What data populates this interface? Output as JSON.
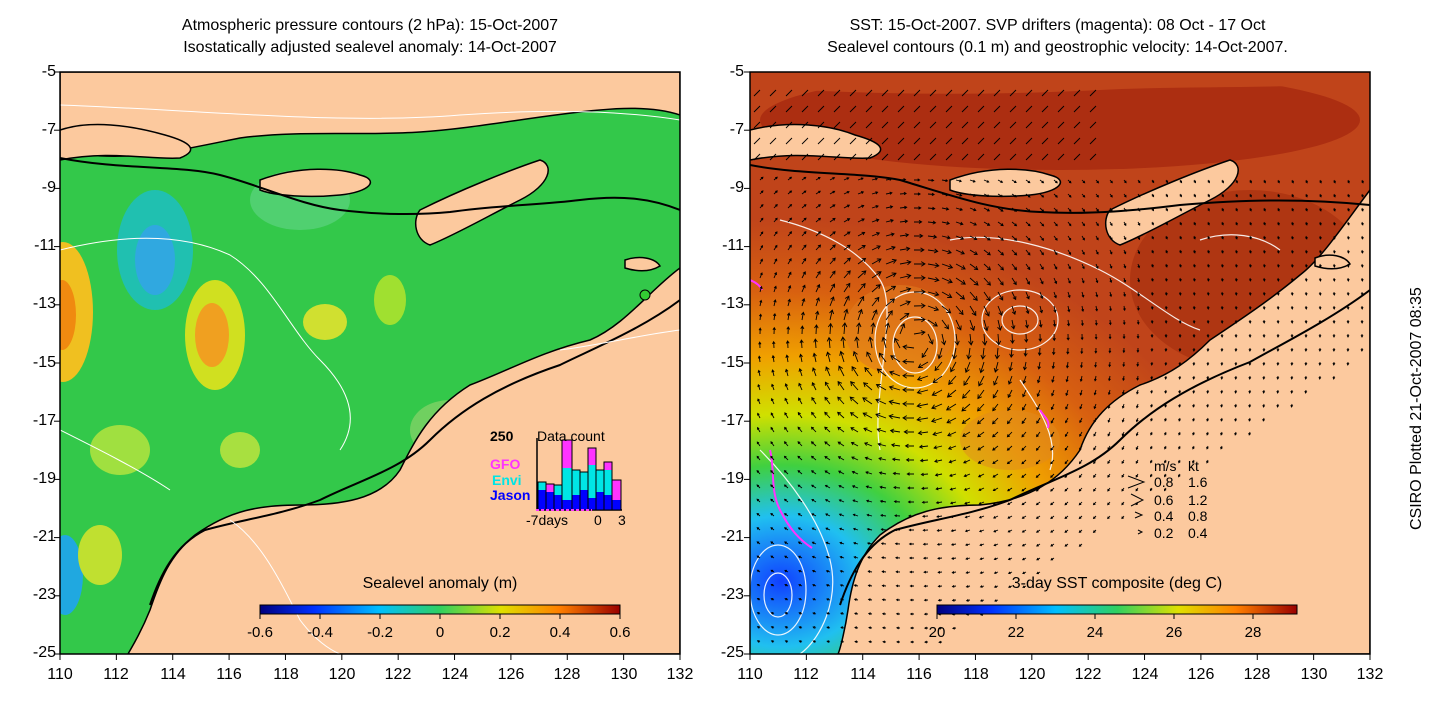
{
  "left_panel": {
    "title_line1": "Atmospheric pressure contours (2 hPa): 15-Oct-2007",
    "title_line2": "Isostatically adjusted sealevel anomaly: 14-Oct-2007",
    "colorbar": {
      "title": "Sealevel anomaly (m)",
      "ticks": [
        "-0.6",
        "-0.4",
        "-0.2",
        "0",
        "0.2",
        "0.4",
        "0.6"
      ]
    },
    "inset": {
      "title": "Data count",
      "y_max_label": "250",
      "x_labels": [
        "-7days",
        "0",
        "3"
      ],
      "legend": [
        {
          "name": "GFO",
          "color": "#ff33ff"
        },
        {
          "name": "Envi",
          "color": "#00e5e5"
        },
        {
          "name": "Jason",
          "color": "#0000ff"
        }
      ]
    }
  },
  "right_panel": {
    "title_line1": "SST: 15-Oct-2007. SVP drifters (magenta): 08 Oct - 17 Oct",
    "title_line2": "Sealevel contours (0.1 m) and geostrophic velocity: 14-Oct-2007.",
    "colorbar": {
      "title": "3-day SST composite (deg C)",
      "ticks": [
        "20",
        "22",
        "24",
        "26",
        "28"
      ]
    },
    "velocity_legend": {
      "header_ms": "m/s",
      "header_kt": "kt",
      "rows": [
        {
          "ms": "0.8",
          "kt": "1.6"
        },
        {
          "ms": "0.6",
          "kt": "1.2"
        },
        {
          "ms": "0.4",
          "kt": "0.8"
        },
        {
          "ms": "0.2",
          "kt": "0.4"
        }
      ]
    }
  },
  "axes": {
    "y_ticks": [
      "-5",
      "-7",
      "-9",
      "-11",
      "-13",
      "-15",
      "-17",
      "-19",
      "-21",
      "-23",
      "-25"
    ],
    "x_ticks": [
      "110",
      "112",
      "114",
      "116",
      "118",
      "120",
      "122",
      "124",
      "126",
      "128",
      "130",
      "132"
    ]
  },
  "side_credit": "CSIRO Plotted 21-Oct-2007 08:35",
  "colors": {
    "land": "#fcc99e",
    "sla_background": "#33c84a",
    "sst_background": "#c0441a"
  }
}
